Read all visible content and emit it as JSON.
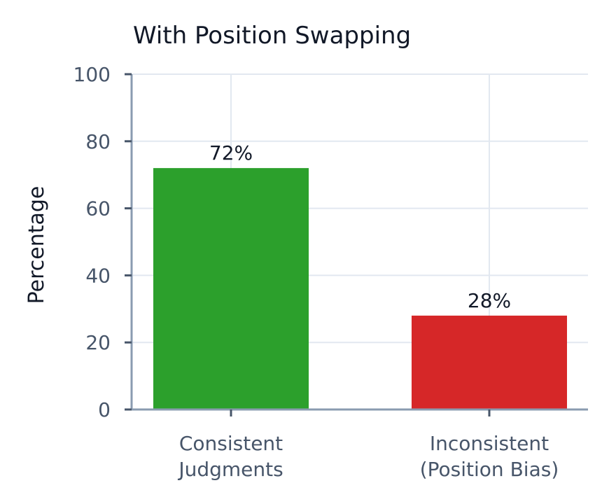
{
  "chart_data": {
    "type": "bar",
    "title": "With Position Swapping",
    "xlabel": "",
    "ylabel": "Percentage",
    "ylim": [
      0,
      100
    ],
    "yticks": [
      "0",
      "20",
      "40",
      "60",
      "80",
      "100"
    ],
    "grid": true,
    "categories": [
      [
        "Consistent",
        "Judgments"
      ],
      [
        "Inconsistent",
        "(Position Bias)"
      ]
    ],
    "values": [
      72,
      28
    ],
    "data_labels": [
      "72%",
      "28%"
    ],
    "colors": [
      "#2ca02c",
      "#d62728"
    ]
  }
}
